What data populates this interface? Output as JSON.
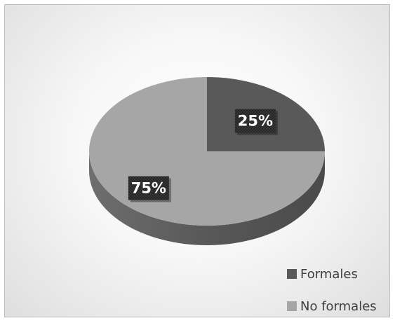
{
  "chart_data": {
    "type": "pie",
    "style": "3d",
    "categories": [
      "Formales",
      "No formales"
    ],
    "values": [
      25,
      75
    ],
    "data_labels": [
      "25%",
      "75%"
    ],
    "colors": [
      "#595959",
      "#a6a6a6"
    ],
    "legend_position": "bottom-right",
    "title": ""
  }
}
